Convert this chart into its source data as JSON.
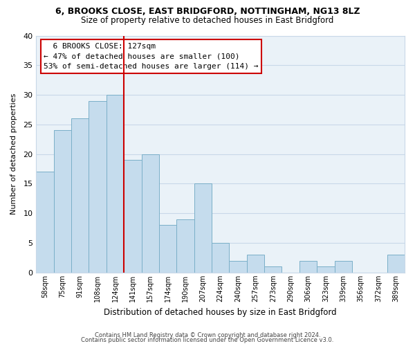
{
  "title1": "6, BROOKS CLOSE, EAST BRIDGFORD, NOTTINGHAM, NG13 8LZ",
  "title2": "Size of property relative to detached houses in East Bridgford",
  "xlabel": "Distribution of detached houses by size in East Bridgford",
  "ylabel": "Number of detached properties",
  "categories": [
    "58sqm",
    "75sqm",
    "91sqm",
    "108sqm",
    "124sqm",
    "141sqm",
    "157sqm",
    "174sqm",
    "190sqm",
    "207sqm",
    "224sqm",
    "240sqm",
    "257sqm",
    "273sqm",
    "290sqm",
    "306sqm",
    "323sqm",
    "339sqm",
    "356sqm",
    "372sqm",
    "389sqm"
  ],
  "values": [
    17,
    24,
    26,
    29,
    30,
    19,
    20,
    8,
    9,
    15,
    5,
    2,
    3,
    1,
    0,
    2,
    1,
    2,
    0,
    0,
    3
  ],
  "bar_color": "#c5dced",
  "bar_edge_color": "#7aafc8",
  "highlight_line_color": "#cc0000",
  "highlight_line_index": 4,
  "ylim": [
    0,
    40
  ],
  "yticks": [
    0,
    5,
    10,
    15,
    20,
    25,
    30,
    35,
    40
  ],
  "annotation_title": "6 BROOKS CLOSE: 127sqm",
  "annotation_line1": "← 47% of detached houses are smaller (100)",
  "annotation_line2": "53% of semi-detached houses are larger (114) →",
  "footer1": "Contains HM Land Registry data © Crown copyright and database right 2024.",
  "footer2": "Contains public sector information licensed under the Open Government Licence v3.0.",
  "bg_color": "#ffffff",
  "grid_color": "#c8d8e8",
  "plot_bg_color": "#eaf2f8"
}
